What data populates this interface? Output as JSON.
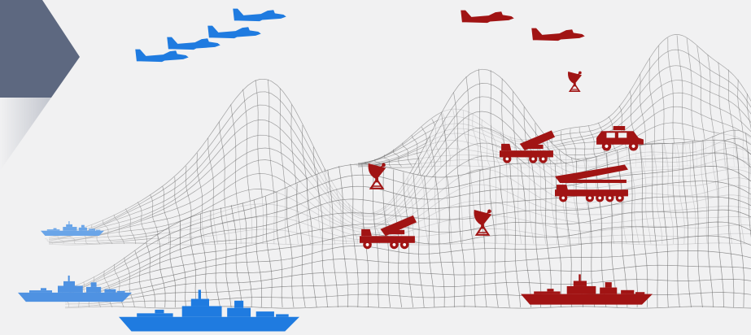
{
  "colors": {
    "background": "#f1f1f2",
    "panel": "#5d6880",
    "friendly": "#1f7be0",
    "friendly_light": "#6aa5e8",
    "hostile": "#a11414",
    "mesh": "#6a6a6a"
  },
  "icons": {
    "nav_panel": "chevron-panel-icon",
    "aircraft": "fighter-jet-icon",
    "ship": "warship-icon",
    "radar": "radar-dish-icon",
    "launcher": "missile-launcher-truck-icon",
    "vehicle": "armored-vehicle-icon"
  },
  "friendly_aircraft_count": 4,
  "hostile_aircraft_count": 2,
  "friendly_ship_count": 3,
  "hostile_ship_count": 1,
  "radar_count": 3,
  "launcher_count": 3,
  "vehicle_count": 1
}
